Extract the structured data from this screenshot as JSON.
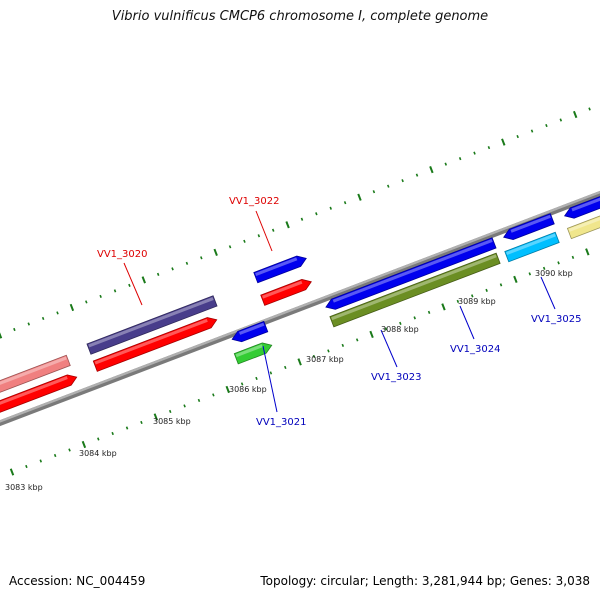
{
  "title": "Vibrio vulnificus CMCP6 chromosome I, complete genome",
  "footer": {
    "accession": "Accession: NC_004459",
    "summary": "Topology: circular; Length: 3,281,944 bp; Genes: 3,038"
  },
  "scale_labels": [
    {
      "text": "3083 kbp",
      "kbp": 3083
    },
    {
      "text": "3084 kbp",
      "kbp": 3084
    },
    {
      "text": "3085 kbp",
      "kbp": 3085
    },
    {
      "text": "3086 kbp",
      "kbp": 3086
    },
    {
      "text": "3087 kbp",
      "kbp": 3087
    },
    {
      "text": "3088 kbp",
      "kbp": 3088
    },
    {
      "text": "3089 kbp",
      "kbp": 3089
    },
    {
      "text": "3090 kbp",
      "kbp": 3090
    }
  ],
  "gene_labels": [
    {
      "id": "VV1_3020",
      "color": "#dd0000"
    },
    {
      "id": "VV1_3021",
      "color": "#0000bb"
    },
    {
      "id": "VV1_3022",
      "color": "#dd0000"
    },
    {
      "id": "VV1_3023",
      "color": "#0000bb"
    },
    {
      "id": "VV1_3024",
      "color": "#0000bb"
    },
    {
      "id": "VV1_3025",
      "color": "#0000bb"
    }
  ],
  "colors": {
    "backbone": "#8c8c8c",
    "ticks": "#1a7a1a",
    "cds_red": "#ff0000",
    "cds_blue": "#0000ee",
    "cds_green": "#33cc33",
    "cds_olive": "#6b8e23",
    "cds_navy": "#483d8b",
    "cds_salmon": "#f08080",
    "cds_cyan": "#00bfff",
    "cds_khaki": "#f0e68c"
  }
}
